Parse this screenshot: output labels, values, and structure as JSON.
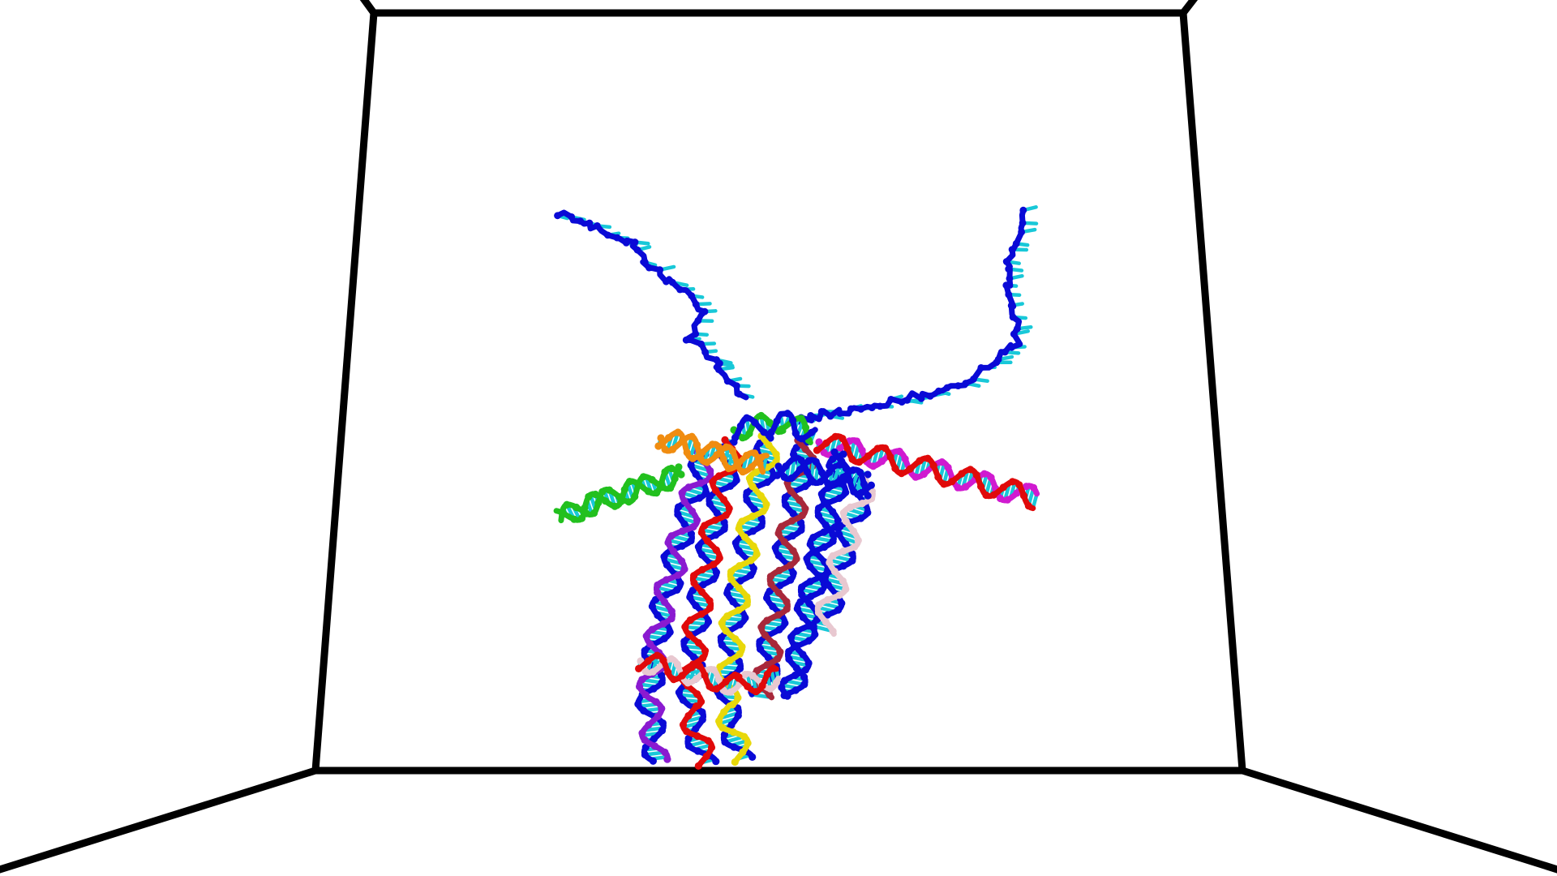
{
  "scene": {
    "background": "#ffffff",
    "box_edge_color": "#000000"
  },
  "strand_colors": {
    "scaffold": "#0a0ad6",
    "base_pair": "#18c8d8",
    "green": "#22c01e",
    "orange": "#f08c10",
    "purple": "#8a1ad0",
    "magenta": "#d01ad0",
    "red": "#e00a0a",
    "yellow": "#e8d80a",
    "brown": "#a8283a",
    "pink": "#e8c8d0"
  }
}
